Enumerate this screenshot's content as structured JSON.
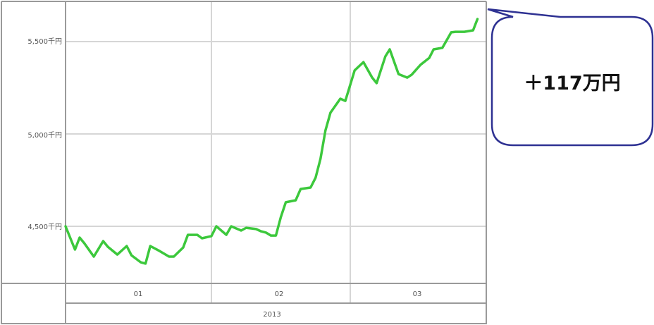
{
  "chart_data": {
    "type": "line",
    "title": "",
    "xlabel": "",
    "ylabel": "",
    "ylim": [
      4200,
      5700
    ],
    "y_ticks": [
      {
        "value": 5500,
        "label": "5,500千円"
      },
      {
        "value": 5000,
        "label": "5,000千円"
      },
      {
        "value": 4500,
        "label": "4,500千円"
      }
    ],
    "x_month_labels": [
      "01",
      "02",
      "03"
    ],
    "x_year_label": "2013",
    "grid": true,
    "line_color": "#3cc83c",
    "series": [
      {
        "points": [
          [
            "2013-01-01",
            4500
          ],
          [
            "2013-01-03",
            4374
          ],
          [
            "2013-01-04",
            4439
          ],
          [
            "2013-01-05",
            4408
          ],
          [
            "2013-01-07",
            4336
          ],
          [
            "2013-01-09",
            4420
          ],
          [
            "2013-01-10",
            4389
          ],
          [
            "2013-01-12",
            4347
          ],
          [
            "2013-01-14",
            4393
          ],
          [
            "2013-01-15",
            4343
          ],
          [
            "2013-01-17",
            4305
          ],
          [
            "2013-01-18",
            4298
          ],
          [
            "2013-01-19",
            4393
          ],
          [
            "2013-01-21",
            4366
          ],
          [
            "2013-01-23",
            4336
          ],
          [
            "2013-01-24",
            4336
          ],
          [
            "2013-01-26",
            4385
          ],
          [
            "2013-01-27",
            4454
          ],
          [
            "2013-01-29",
            4454
          ],
          [
            "2013-01-30",
            4435
          ],
          [
            "2013-02-01",
            4447
          ],
          [
            "2013-02-02",
            4500
          ],
          [
            "2013-02-04",
            4454
          ],
          [
            "2013-02-05",
            4500
          ],
          [
            "2013-02-07",
            4477
          ],
          [
            "2013-02-08",
            4492
          ],
          [
            "2013-02-10",
            4485
          ],
          [
            "2013-02-11",
            4473
          ],
          [
            "2013-02-12",
            4466
          ],
          [
            "2013-02-13",
            4450
          ],
          [
            "2013-02-14",
            4450
          ],
          [
            "2013-02-15",
            4550
          ],
          [
            "2013-02-16",
            4630
          ],
          [
            "2013-02-18",
            4641
          ],
          [
            "2013-02-19",
            4702
          ],
          [
            "2013-02-21",
            4710
          ],
          [
            "2013-02-22",
            4763
          ],
          [
            "2013-02-23",
            4866
          ],
          [
            "2013-02-24",
            5019
          ],
          [
            "2013-02-25",
            5115
          ],
          [
            "2013-02-27",
            5191
          ],
          [
            "2013-02-28",
            5179
          ],
          [
            "2013-03-02",
            5344
          ],
          [
            "2013-03-04",
            5389
          ],
          [
            "2013-03-06",
            5305
          ],
          [
            "2013-03-07",
            5275
          ],
          [
            "2013-03-09",
            5420
          ],
          [
            "2013-03-10",
            5458
          ],
          [
            "2013-03-12",
            5324
          ],
          [
            "2013-03-14",
            5305
          ],
          [
            "2013-03-15",
            5321
          ],
          [
            "2013-03-17",
            5374
          ],
          [
            "2013-03-19",
            5412
          ],
          [
            "2013-03-20",
            5458
          ],
          [
            "2013-03-22",
            5466
          ],
          [
            "2013-03-24",
            5550
          ],
          [
            "2013-03-25",
            5553
          ],
          [
            "2013-03-27",
            5553
          ],
          [
            "2013-03-29",
            5561
          ],
          [
            "2013-03-30",
            5622
          ]
        ]
      }
    ],
    "annotation": {
      "text": "＋117万円",
      "border_color": "#2e3192"
    }
  }
}
